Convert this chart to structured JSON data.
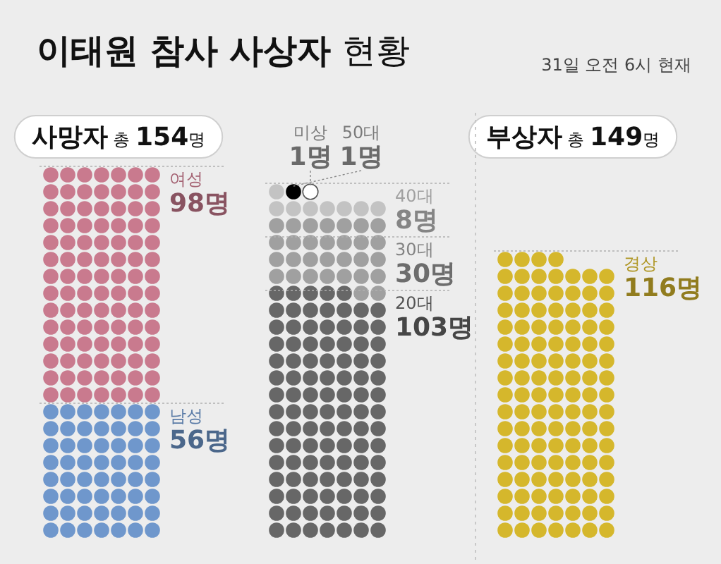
{
  "chart_data": [
    {
      "type": "other",
      "title": "**이태원 참사 사상자** 현황",
      "subtitle": "**사망자** 총 **154**명",
      "annotations": [
        "31일 오전 6시 현재"
      ],
      "categories": [
        "여성",
        "남성"
      ],
      "values": [
        98,
        56
      ],
      "value_labels": [
        "98명",
        "56명"
      ],
      "colors": [
        "#c97a8e",
        "#6f97cc"
      ]
    },
    {
      "type": "other",
      "categories": [
        "미상",
        "50대",
        "40대",
        "30대",
        "20대"
      ],
      "values": [
        1,
        1,
        8,
        30,
        103
      ],
      "value_labels": [
        "1명",
        "1명",
        "8명",
        "30명",
        "103명"
      ],
      "colors": [
        "#ffffff",
        "#000000",
        "#c3c3c3",
        "#a0a0a0",
        "#676767"
      ]
    },
    {
      "type": "other",
      "subtitle": "**부상자** 총 **149**명",
      "categories": [
        "경상"
      ],
      "values": [
        116
      ],
      "value_labels": [
        "116명"
      ],
      "colors": [
        "#d5b72c"
      ]
    }
  ]
}
